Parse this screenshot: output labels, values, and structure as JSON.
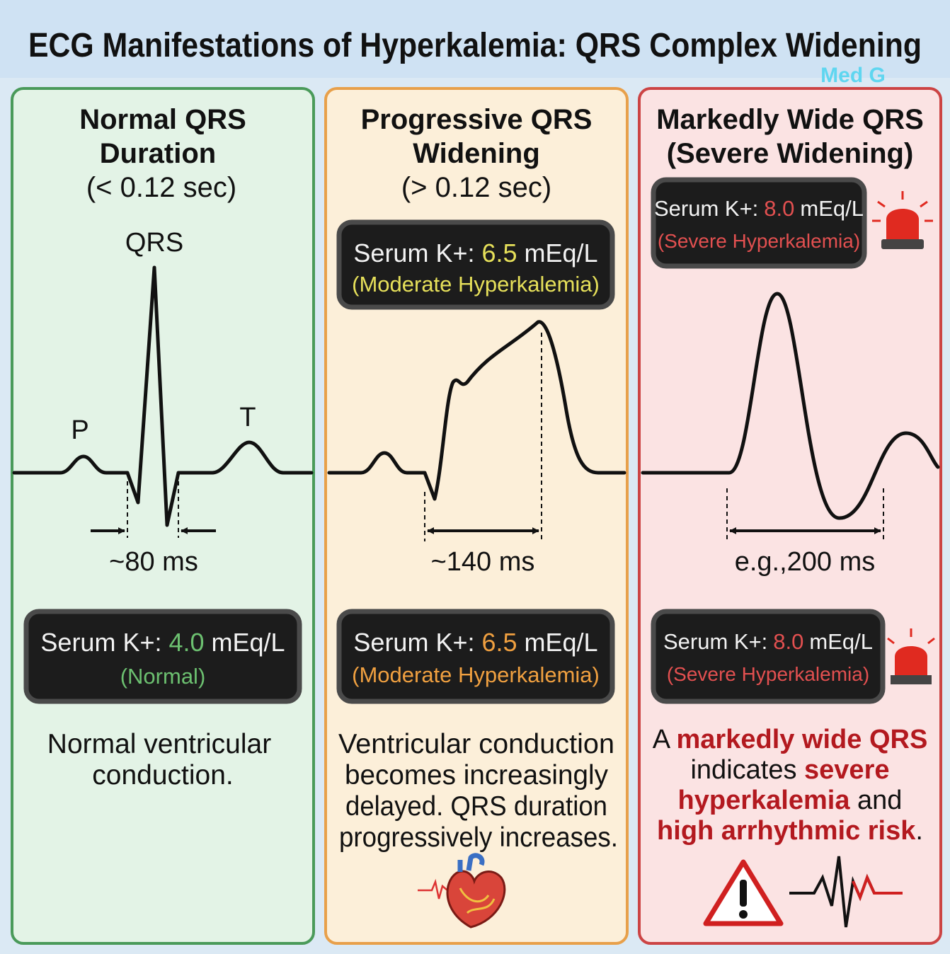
{
  "header": {
    "title": "ECG Manifestations of Hyperkalemia: QRS Complex Widening",
    "watermark": "Med G"
  },
  "panels": [
    {
      "heading": [
        "Normal QRS",
        "Duration",
        "(< 0.12 sec)"
      ],
      "wave_labels": [
        "QRS",
        "P",
        "T"
      ],
      "duration": "~80 ms",
      "bottom_box": {
        "label": "Serum K+:",
        "value": "4.0",
        "unit": "mEq/L",
        "status": "(Normal)"
      },
      "description": [
        "Normal ventricular",
        "conduction."
      ]
    },
    {
      "heading": [
        "Progressive QRS",
        "Widening",
        "(> 0.12 sec)"
      ],
      "top_box": {
        "label": "Serum K+:",
        "value": "6.5",
        "unit": "mEq/L",
        "status": "(Moderate Hyperkalemia)"
      },
      "duration": "~140 ms",
      "bottom_box": {
        "label": "Serum K+:",
        "value": "6.5",
        "unit": "mEq/L",
        "status": "(Moderate Hyperkalemia)"
      },
      "description": [
        "Ventricular conduction",
        "becomes increasingly",
        "delayed. QRS duration",
        "progressively increases."
      ]
    },
    {
      "heading": [
        "Markedly Wide QRS",
        "(Severe Widening)"
      ],
      "top_box": {
        "label": "Serum K+:",
        "value": "8.0",
        "unit": "mEq/L",
        "status": "(Severe Hyperkalemia)"
      },
      "duration": "e.g.,200 ms",
      "bottom_box": {
        "label": "Serum K+:",
        "value": "8.0",
        "unit": "mEq/L",
        "status": "(Severe Hyperkalemia)"
      },
      "description": [
        [
          "A ",
          "markedly wide QRS"
        ],
        [
          "indicates ",
          "severe"
        ],
        [
          "hyperkalemia",
          " and"
        ],
        [
          "high arrhythmic risk",
          "."
        ]
      ]
    }
  ]
}
